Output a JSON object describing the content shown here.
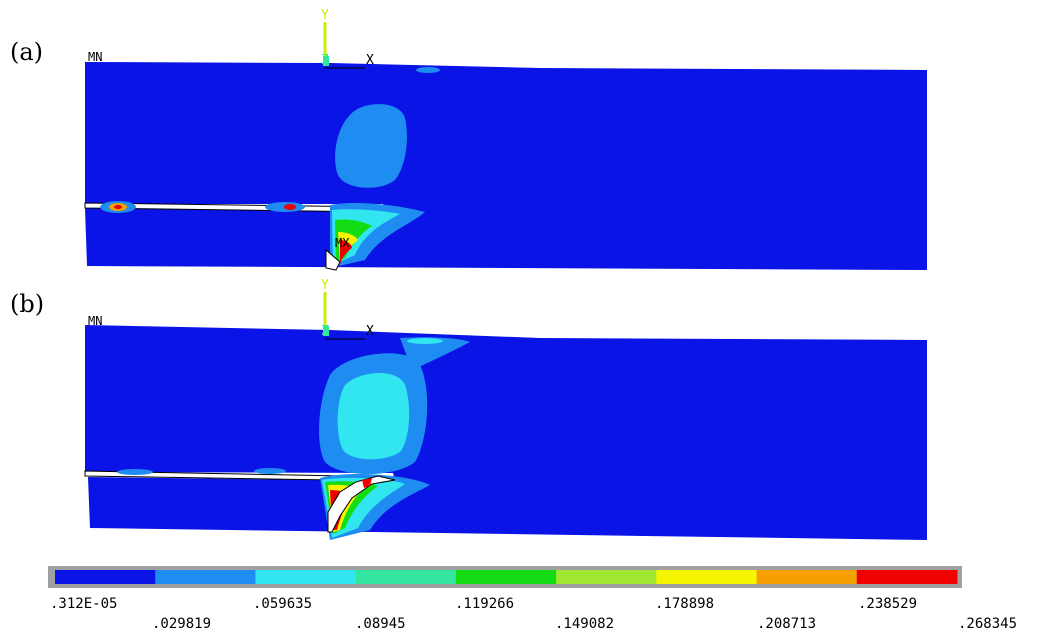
{
  "panels": [
    {
      "label": "(a)",
      "min_tag": "MN",
      "max_tag": "MX",
      "axis": {
        "y": "Y",
        "z": "Z",
        "x": "X"
      }
    },
    {
      "label": "(b)",
      "min_tag": "MN",
      "axis": {
        "y": "Y",
        "z": "Z",
        "x": "X"
      }
    }
  ],
  "colorbar": {
    "colors": [
      "#0a14e6",
      "#1e8cf0",
      "#32e6f0",
      "#32e6a0",
      "#14dc14",
      "#a0e632",
      "#f5f500",
      "#f5a000",
      "#f00000"
    ],
    "labels_top": [
      ".312E-05",
      ".059635",
      ".119266",
      ".178898",
      ".238529"
    ],
    "labels_bottom": [
      ".029819",
      ".08945",
      ".149082",
      ".208713",
      ".268345"
    ]
  },
  "colors": {
    "field_blue": "#0a14e6",
    "axis_green": "#c8f000"
  }
}
